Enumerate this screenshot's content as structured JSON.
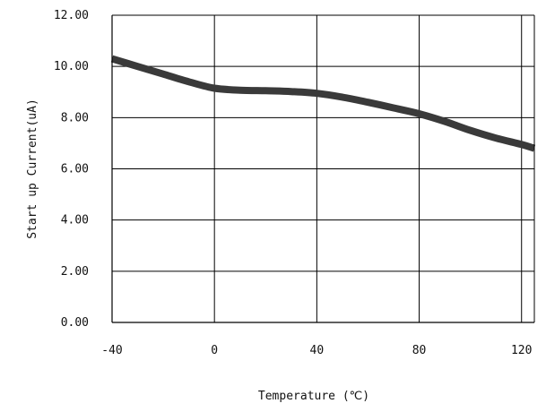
{
  "chart_data": {
    "type": "line",
    "title": "",
    "xlabel": "Temperature (℃)",
    "ylabel": "Start up Current(uA)",
    "xlim": [
      -40,
      125
    ],
    "ylim": [
      0,
      12
    ],
    "x_ticks": [
      -40,
      0,
      40,
      80,
      120
    ],
    "x_tick_labels": [
      "-40",
      "0",
      "40",
      "80",
      "120"
    ],
    "y_ticks": [
      0,
      2,
      4,
      6,
      8,
      10,
      12
    ],
    "y_tick_labels": [
      "0.00",
      "2.00",
      "4.00",
      "6.00",
      "8.00",
      "10.00",
      "12.00"
    ],
    "grid": true,
    "series": [
      {
        "color": "#3a3a3a",
        "x": [
          -40,
          -30,
          -20,
          -10,
          0,
          10,
          20,
          30,
          40,
          50,
          60,
          70,
          80,
          90,
          100,
          110,
          120,
          125
        ],
        "y": [
          10.3,
          10.0,
          9.7,
          9.4,
          9.15,
          9.07,
          9.05,
          9.02,
          8.95,
          8.8,
          8.6,
          8.38,
          8.15,
          7.85,
          7.5,
          7.2,
          6.95,
          6.8
        ]
      }
    ]
  }
}
